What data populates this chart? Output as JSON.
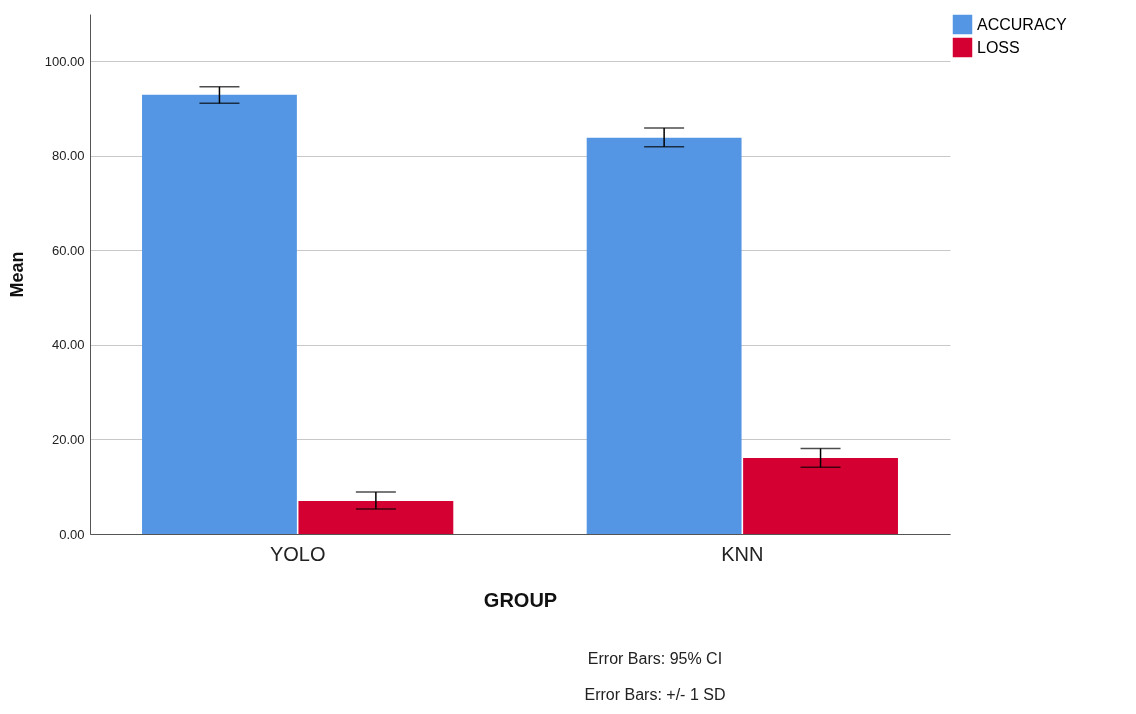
{
  "chart_data": {
    "type": "bar",
    "xlabel": "GROUP",
    "ylabel": "Mean",
    "categories": [
      "YOLO",
      "KNN"
    ],
    "series": [
      {
        "name": "ACCURACY",
        "color": "#5596e4",
        "values": [
          92.9,
          83.8
        ],
        "errors": [
          [
            91.1,
            94.6
          ],
          [
            81.9,
            85.9
          ]
        ]
      },
      {
        "name": "LOSS",
        "color": "#d50032",
        "values": [
          7.0,
          16.1
        ],
        "errors": [
          [
            5.3,
            8.9
          ],
          [
            14.1,
            18.1
          ]
        ]
      }
    ],
    "ylim": [
      0,
      110
    ],
    "yticks": [
      {
        "value": 0,
        "label": "0.00"
      },
      {
        "value": 20,
        "label": "20.00"
      },
      {
        "value": 40,
        "label": "40.00"
      },
      {
        "value": 60,
        "label": "60.00"
      },
      {
        "value": 80,
        "label": "80.00"
      },
      {
        "value": 100,
        "label": "100.00"
      }
    ],
    "grid": "y",
    "legend": "top right",
    "annotations": [
      "Error Bars: 95% CI",
      "Error Bars: +/- 1 SD"
    ]
  }
}
